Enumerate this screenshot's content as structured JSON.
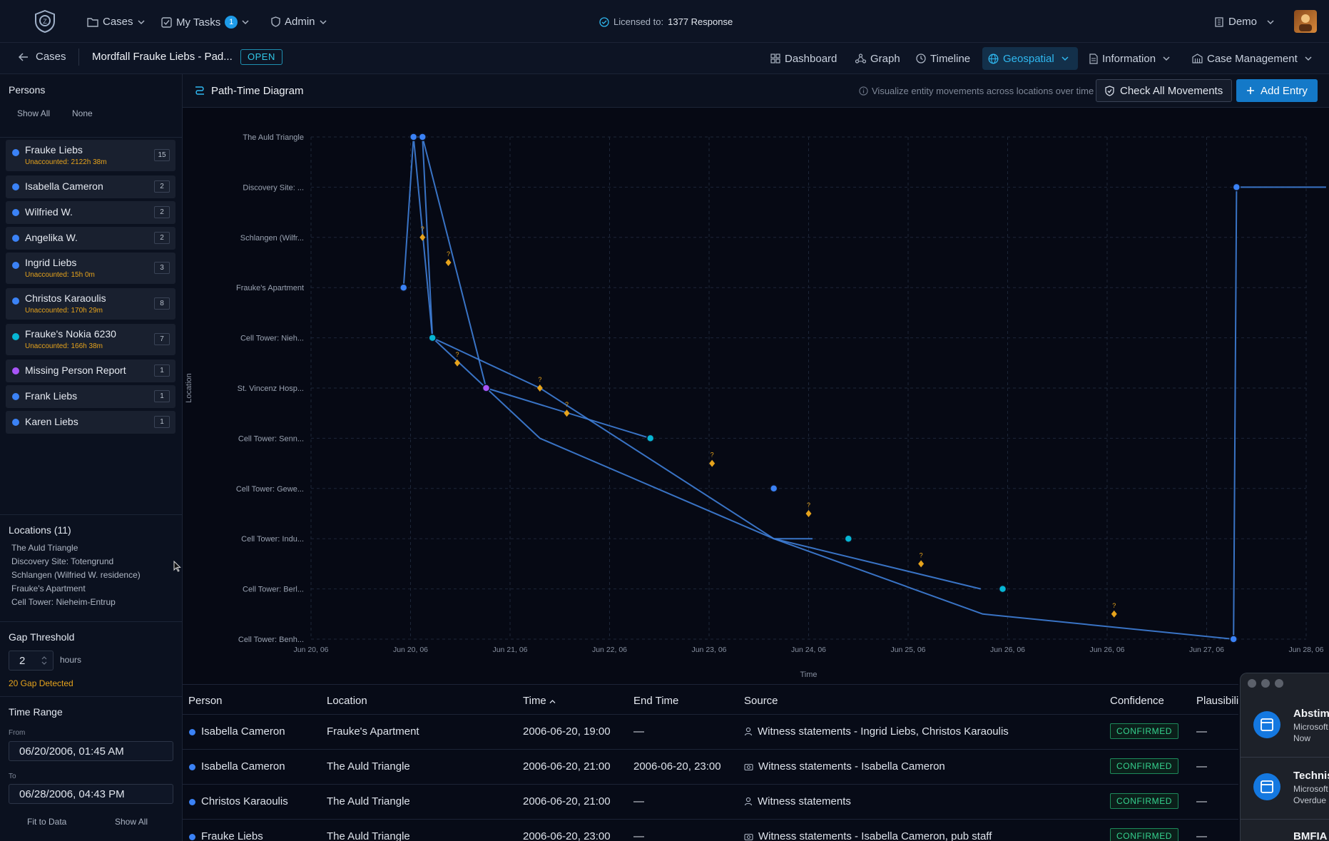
{
  "topbar": {
    "cases_label": "Cases",
    "tasks_label": "My Tasks",
    "tasks_count": "1",
    "admin_label": "Admin",
    "license_prefix": "Licensed to:",
    "license_name": "1377 Response",
    "org_label": "Demo"
  },
  "subbar": {
    "back_label": "Cases",
    "case_title": "Mordfall Frauke Liebs - Pad...",
    "status": "OPEN",
    "tabs": [
      {
        "label": "Dashboard",
        "icon": "dashboard-icon"
      },
      {
        "label": "Graph",
        "icon": "graph-icon"
      },
      {
        "label": "Timeline",
        "icon": "clock-icon"
      },
      {
        "label": "Geospatial",
        "icon": "globe-icon",
        "active": true
      },
      {
        "label": "Information",
        "icon": "document-icon"
      },
      {
        "label": "Case Management",
        "icon": "building-icon"
      }
    ]
  },
  "sidebar": {
    "persons_title": "Persons",
    "show_all": "Show All",
    "none": "None",
    "persons": [
      {
        "name": "Frauke Liebs",
        "sub": "Unaccounted: 2122h 38m",
        "count": "15",
        "color": "#3b82f6"
      },
      {
        "name": "Isabella Cameron",
        "sub": "",
        "count": "2",
        "color": "#3b82f6"
      },
      {
        "name": "Wilfried W.",
        "sub": "",
        "count": "2",
        "color": "#3b82f6"
      },
      {
        "name": "Angelika W.",
        "sub": "",
        "count": "2",
        "color": "#3b82f6"
      },
      {
        "name": "Ingrid Liebs",
        "sub": "Unaccounted: 15h 0m",
        "count": "3",
        "color": "#3b82f6"
      },
      {
        "name": "Christos Karaoulis",
        "sub": "Unaccounted: 170h 29m",
        "count": "8",
        "color": "#3b82f6"
      },
      {
        "name": "Frauke's Nokia 6230",
        "sub": "Unaccounted: 166h 38m",
        "count": "7",
        "color": "#06b6d4"
      },
      {
        "name": "Missing Person Report",
        "sub": "",
        "count": "1",
        "color": "#a855f7"
      },
      {
        "name": "Frank Liebs",
        "sub": "",
        "count": "1",
        "color": "#3b82f6"
      },
      {
        "name": "Karen Liebs",
        "sub": "",
        "count": "1",
        "color": "#3b82f6"
      }
    ],
    "locations_title": "Locations (11)",
    "locations": [
      "The Auld Triangle",
      "Discovery Site: Totengrund",
      "Schlangen (Wilfried W. residence)",
      "Frauke's Apartment",
      "Cell Tower: Nieheim-Entrup"
    ],
    "gap_title": "Gap Threshold",
    "gap_value": "2",
    "gap_unit": "hours",
    "gap_detected": "20 Gap Detected",
    "range_title": "Time Range",
    "from_label": "From",
    "from_value": "06/20/2006, 01:45 AM",
    "to_label": "To",
    "to_value": "06/28/2006, 04:43 PM",
    "fit_label": "Fit to Data",
    "show_all_label": "Show All"
  },
  "main": {
    "title": "Path-Time Diagram",
    "hint": "Visualize entity movements across locations over time",
    "check_label": "Check All Movements",
    "add_label": "Add Entry"
  },
  "chart_data": {
    "type": "line",
    "xlabel": "Time",
    "ylabel": "Location",
    "x_ticks": [
      "Jun 20, 06",
      "Jun 20, 06",
      "Jun 21, 06",
      "Jun 22, 06",
      "Jun 23, 06",
      "Jun 24, 06",
      "Jun 25, 06",
      "Jun 26, 06",
      "Jun 26, 06",
      "Jun 27, 06",
      "Jun 28, 06"
    ],
    "xlim": [
      0,
      10
    ],
    "categories": [
      "The Auld Triangle",
      "Discovery Site: ...",
      "Schlangen (Wilfr...",
      "Frauke's Apartment",
      "Cell Tower: Nieh...",
      "St. Vincenz Hosp...",
      "Cell Tower: Senn...",
      "Cell Tower: Gewe...",
      "Cell Tower: Indu...",
      "Cell Tower: Berl...",
      "Cell Tower: Benh..."
    ],
    "grid": true,
    "lines": [
      {
        "points": [
          [
            0.93,
            3
          ],
          [
            1.03,
            0
          ],
          [
            1.22,
            4
          ],
          [
            2.3,
            6
          ],
          [
            4.65,
            8
          ],
          [
            6.75,
            9.5
          ],
          [
            9.27,
            10
          ],
          [
            9.3,
            1
          ],
          [
            10.2,
            1
          ]
        ]
      },
      {
        "points": [
          [
            1.03,
            0
          ],
          [
            1.12,
            0
          ],
          [
            1.76,
            5
          ],
          [
            3.41,
            6
          ]
        ]
      },
      {
        "points": [
          [
            1.12,
            0
          ],
          [
            1.22,
            4
          ],
          [
            2.3,
            5
          ],
          [
            4.65,
            8
          ],
          [
            5.04,
            8
          ]
        ]
      },
      {
        "points": [
          [
            4.65,
            8
          ],
          [
            6.73,
            9
          ]
        ]
      }
    ],
    "nodes": [
      {
        "x": 0.93,
        "y": 3,
        "color": "#3b82f6"
      },
      {
        "x": 1.03,
        "y": 0,
        "color": "#3b82f6"
      },
      {
        "x": 1.12,
        "y": 0,
        "color": "#3b82f6"
      },
      {
        "x": 1.22,
        "y": 4,
        "color": "#06b6d4"
      },
      {
        "x": 1.76,
        "y": 5,
        "color": "#a855f7"
      },
      {
        "x": 3.41,
        "y": 6,
        "color": "#06b6d4"
      },
      {
        "x": 4.65,
        "y": 7,
        "color": "#3b82f6"
      },
      {
        "x": 5.4,
        "y": 8,
        "color": "#06b6d4"
      },
      {
        "x": 6.95,
        "y": 9,
        "color": "#06b6d4"
      },
      {
        "x": 9.27,
        "y": 10,
        "color": "#3b82f6"
      },
      {
        "x": 9.3,
        "y": 1,
        "color": "#3b82f6"
      }
    ],
    "gap_markers": [
      {
        "x": 1.12,
        "y": 2
      },
      {
        "x": 1.38,
        "y": 2.5
      },
      {
        "x": 1.47,
        "y": 4.5
      },
      {
        "x": 2.3,
        "y": 5
      },
      {
        "x": 2.57,
        "y": 5.5
      },
      {
        "x": 4.03,
        "y": 6.5
      },
      {
        "x": 5.0,
        "y": 7.5
      },
      {
        "x": 6.13,
        "y": 8.5
      },
      {
        "x": 8.07,
        "y": 9.5
      }
    ]
  },
  "table": {
    "columns": [
      "Person",
      "Location",
      "Time",
      "End Time",
      "Source",
      "Confidence",
      "Plausibili"
    ],
    "rows": [
      {
        "person": "Isabella Cameron",
        "location": "Frauke's Apartment",
        "time": "2006-06-20, 19:00",
        "end": "—",
        "source": "Witness statements - Ingrid Liebs, Christos Karaoulis",
        "source_icon": "person-icon",
        "confidence": "CONFIRMED",
        "plaus": "—"
      },
      {
        "person": "Isabella Cameron",
        "location": "The Auld Triangle",
        "time": "2006-06-20, 21:00",
        "end": "2006-06-20, 23:00",
        "source": "Witness statements - Isabella Cameron",
        "source_icon": "camera-icon",
        "confidence": "CONFIRMED",
        "plaus": "—"
      },
      {
        "person": "Christos Karaoulis",
        "location": "The Auld Triangle",
        "time": "2006-06-20, 21:00",
        "end": "—",
        "source": "Witness statements",
        "source_icon": "person-icon",
        "confidence": "CONFIRMED",
        "plaus": "—"
      },
      {
        "person": "Frauke Liebs",
        "location": "The Auld Triangle",
        "time": "2006-06-20, 23:00",
        "end": "—",
        "source": "Witness statements - Isabella Cameron, pub staff",
        "source_icon": "camera-icon",
        "confidence": "CONFIRMED",
        "plaus": "—"
      }
    ]
  },
  "notifications": [
    {
      "title": "Abstim",
      "sub1": "Microsoft",
      "sub2": "Now"
    },
    {
      "title": "Technis",
      "sub1": "Microsoft",
      "sub2": "Overdue"
    },
    {
      "title": "BMFIA",
      "sub1": "",
      "sub2": ""
    }
  ]
}
